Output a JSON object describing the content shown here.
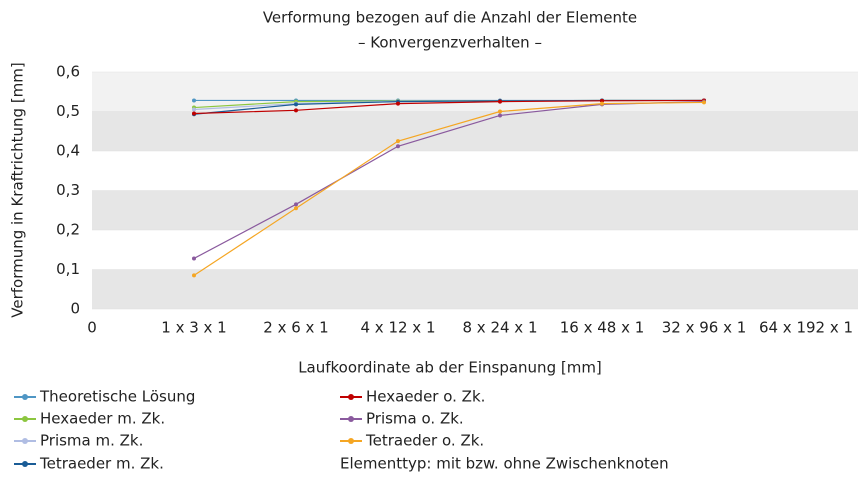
{
  "chart_data": {
    "type": "line",
    "title": "Verformung bezogen auf die Anzahl der Elemente",
    "subtitle": "– Konvergenzverhalten –",
    "x_label": "Laufkoordinate ab der Einspanung [mm]",
    "y_label": "Verformung in Kraftrichtung [mm]",
    "categories": [
      "0",
      "1 x 3 x 1",
      "2 x 6 x 1",
      "4 x 12 x 1",
      "8 x 24 x 1",
      "16 x 48 x 1",
      "32 x 96 x 1",
      "64 x 192 x 1"
    ],
    "ylim": [
      0,
      0.6
    ],
    "yticks": [
      0,
      {
        "value": 0.1,
        "label": "0,1"
      },
      {
        "value": 0.2,
        "label": "0,2"
      },
      {
        "value": 0.3,
        "label": "0,3"
      },
      {
        "value": 0.4,
        "label": "0,4"
      },
      {
        "value": 0.5,
        "label": "0,5"
      },
      {
        "value": 0.6,
        "label": "0,6"
      }
    ],
    "grid": true,
    "legend_position": "bottom",
    "note": "Elementtyp: mit bzw. ohne Zwischenknoten",
    "series": [
      {
        "name": "Theoretische Lösung",
        "color": "#4f96c4",
        "values": [
          null,
          0.528,
          0.528,
          0.528,
          0.528,
          0.528,
          0.528,
          null
        ]
      },
      {
        "name": "Hexaeder m. Zk.",
        "color": "#8cc63f",
        "values": [
          null,
          0.51,
          0.525,
          0.527,
          0.527,
          0.528,
          0.528,
          null
        ]
      },
      {
        "name": "Prisma m. Zk.",
        "color": "#b0bde3",
        "values": [
          null,
          0.505,
          0.52,
          0.526,
          0.527,
          0.528,
          0.528,
          null
        ]
      },
      {
        "name": "Tetraeder m. Zk.",
        "color": "#1a5c96",
        "values": [
          null,
          0.493,
          0.518,
          0.525,
          0.527,
          0.528,
          0.528,
          null
        ]
      },
      {
        "name": "Hexaeder o. Zk.",
        "color": "#c00000",
        "values": [
          null,
          0.495,
          0.503,
          0.52,
          0.525,
          0.527,
          0.528,
          null
        ]
      },
      {
        "name": "Prisma o. Zk.",
        "color": "#8a5a9e",
        "values": [
          null,
          0.128,
          0.265,
          0.412,
          0.49,
          0.518,
          0.525,
          null
        ]
      },
      {
        "name": "Tetraeder o. Zk.",
        "color": "#f5a623",
        "values": [
          null,
          0.085,
          0.255,
          0.425,
          0.5,
          0.52,
          0.523,
          null
        ]
      }
    ]
  }
}
